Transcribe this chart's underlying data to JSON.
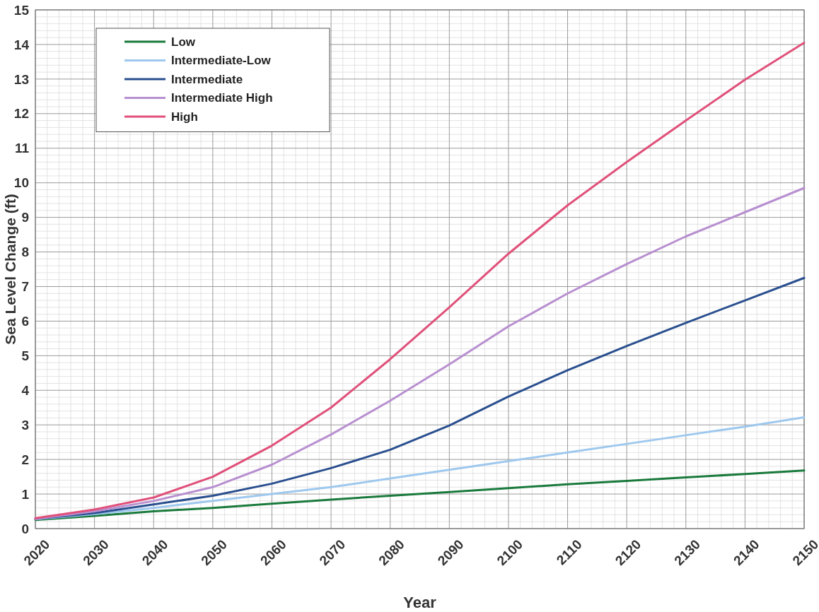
{
  "chart_data": {
    "type": "line",
    "xlabel": "Year",
    "ylabel": "Sea Level Change (ft)",
    "x": [
      2020,
      2030,
      2040,
      2050,
      2060,
      2070,
      2080,
      2090,
      2100,
      2110,
      2120,
      2130,
      2140,
      2150
    ],
    "series": [
      {
        "name": "Low",
        "color": "#1a7a3c",
        "values": [
          0.25,
          0.37,
          0.5,
          0.6,
          0.72,
          0.84,
          0.95,
          1.06,
          1.17,
          1.28,
          1.38,
          1.48,
          1.58,
          1.68
        ]
      },
      {
        "name": "Intermediate-Low",
        "color": "#9ec8ee",
        "values": [
          0.27,
          0.42,
          0.6,
          0.8,
          1.0,
          1.2,
          1.45,
          1.7,
          1.95,
          2.2,
          2.45,
          2.7,
          2.95,
          3.22
        ]
      },
      {
        "name": "Intermediate",
        "color": "#2a4f8f",
        "values": [
          0.28,
          0.45,
          0.7,
          0.95,
          1.3,
          1.75,
          2.28,
          2.98,
          3.82,
          4.58,
          5.28,
          5.95,
          6.6,
          7.25
        ]
      },
      {
        "name": "Intermediate High",
        "color": "#b88fd0",
        "values": [
          0.28,
          0.5,
          0.8,
          1.2,
          1.85,
          2.72,
          3.7,
          4.75,
          5.85,
          6.8,
          7.65,
          8.45,
          9.15,
          9.85
        ]
      },
      {
        "name": "High",
        "color": "#e0507a",
        "values": [
          0.3,
          0.55,
          0.9,
          1.5,
          2.4,
          3.5,
          4.9,
          6.4,
          7.95,
          9.35,
          10.6,
          11.8,
          12.98,
          14.05
        ]
      }
    ],
    "xlim": [
      2020,
      2150
    ],
    "xticks": [
      2020,
      2030,
      2040,
      2050,
      2060,
      2070,
      2080,
      2090,
      2100,
      2110,
      2120,
      2130,
      2140,
      2150
    ],
    "ylim": [
      0,
      15
    ],
    "yticks": [
      0,
      1,
      2,
      3,
      4,
      5,
      6,
      7,
      8,
      9,
      10,
      11,
      12,
      13,
      14,
      15
    ],
    "grid": true,
    "legend": "top left",
    "marker": "none",
    "line_style": "solid"
  }
}
